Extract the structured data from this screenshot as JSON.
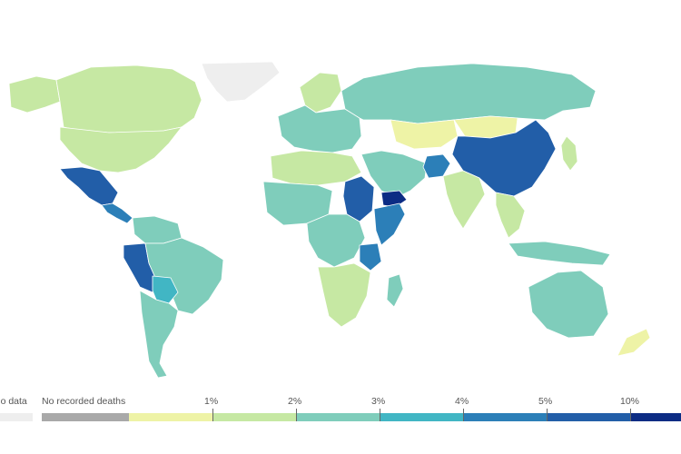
{
  "legend": {
    "no_data_label": "No data",
    "no_recorded_label": "No recorded deaths",
    "bins": [
      "1%",
      "2%",
      "3%",
      "4%",
      "5%",
      "10%"
    ]
  },
  "colors": {
    "no_data": "#eeeeee",
    "no_recorded": "#a9a9a9",
    "bin_0_1": "#eef3a6",
    "bin_1_2": "#c6e8a3",
    "bin_2_3": "#7fcdbb",
    "bin_3_4": "#41b6c4",
    "bin_4_5": "#2c7fb8",
    "bin_5_10": "#225ea8",
    "bin_10_plus": "#0c2c84"
  },
  "map": {
    "regions": [
      {
        "name": "greenland",
        "bin": "no_data"
      },
      {
        "name": "canada",
        "bin": "bin_1_2"
      },
      {
        "name": "alaska",
        "bin": "bin_1_2"
      },
      {
        "name": "usa",
        "bin": "bin_1_2"
      },
      {
        "name": "mexico",
        "bin": "bin_5_10"
      },
      {
        "name": "central-america",
        "bin": "bin_4_5"
      },
      {
        "name": "colombia-venezuela",
        "bin": "bin_2_3"
      },
      {
        "name": "brazil",
        "bin": "bin_2_3"
      },
      {
        "name": "peru",
        "bin": "bin_5_10"
      },
      {
        "name": "bolivia",
        "bin": "bin_3_4"
      },
      {
        "name": "argentina",
        "bin": "bin_2_3"
      },
      {
        "name": "europe",
        "bin": "bin_2_3"
      },
      {
        "name": "scandinavia",
        "bin": "bin_1_2"
      },
      {
        "name": "russia",
        "bin": "bin_2_3"
      },
      {
        "name": "kazakhstan",
        "bin": "bin_0_1"
      },
      {
        "name": "mongolia",
        "bin": "bin_0_1"
      },
      {
        "name": "china",
        "bin": "bin_5_10"
      },
      {
        "name": "middle-east",
        "bin": "bin_2_3"
      },
      {
        "name": "afghanistan",
        "bin": "bin_4_5"
      },
      {
        "name": "yemen",
        "bin": "bin_10_plus"
      },
      {
        "name": "india",
        "bin": "bin_1_2"
      },
      {
        "name": "southeast-asia",
        "bin": "bin_1_2"
      },
      {
        "name": "indonesia",
        "bin": "bin_2_3"
      },
      {
        "name": "australia",
        "bin": "bin_2_3"
      },
      {
        "name": "new-zealand",
        "bin": "bin_0_1"
      },
      {
        "name": "north-africa",
        "bin": "bin_1_2"
      },
      {
        "name": "west-africa",
        "bin": "bin_2_3"
      },
      {
        "name": "sudan",
        "bin": "bin_5_10"
      },
      {
        "name": "somalia",
        "bin": "bin_4_5"
      },
      {
        "name": "central-africa",
        "bin": "bin_2_3"
      },
      {
        "name": "tanzania",
        "bin": "bin_4_5"
      },
      {
        "name": "southern-africa",
        "bin": "bin_1_2"
      },
      {
        "name": "madagascar",
        "bin": "bin_2_3"
      },
      {
        "name": "japan",
        "bin": "bin_1_2"
      }
    ]
  }
}
